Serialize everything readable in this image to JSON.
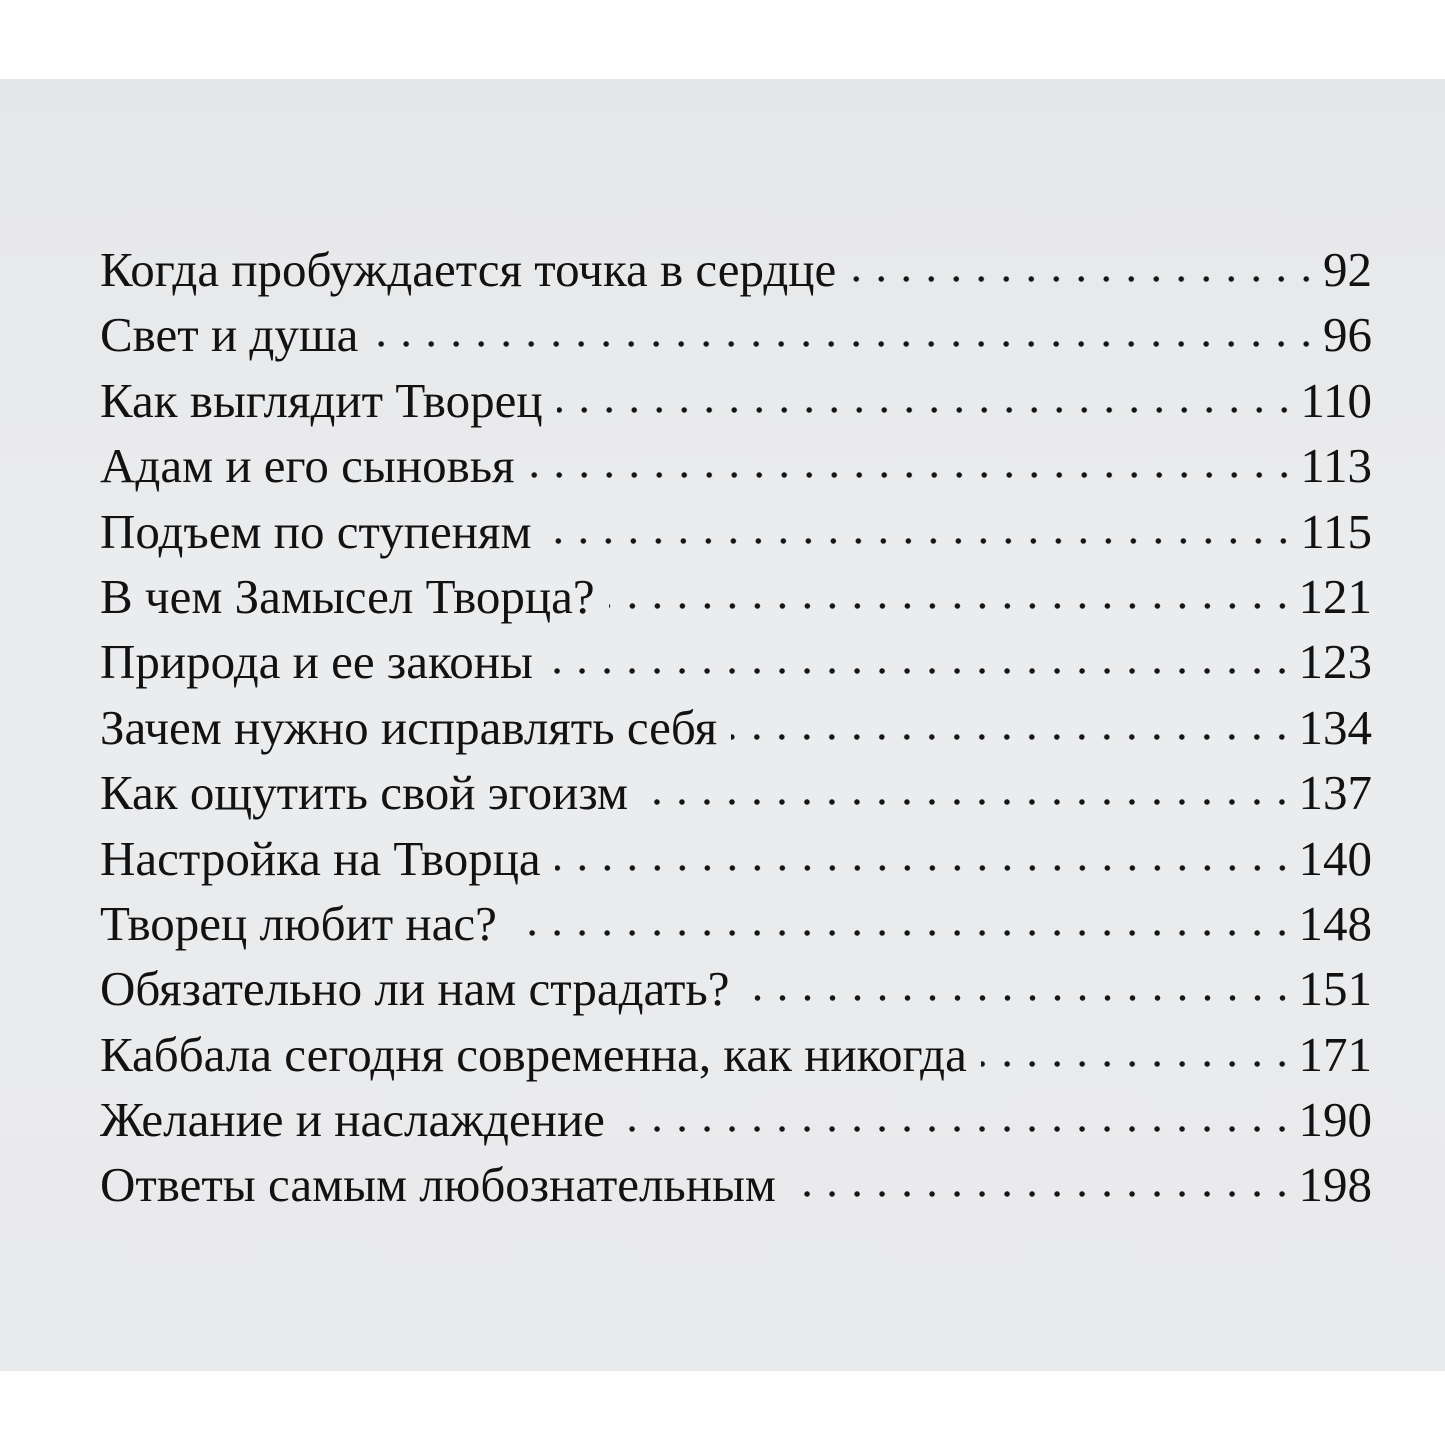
{
  "toc": [
    {
      "title": "Когда пробуждается точка в сердце",
      "page": "92"
    },
    {
      "title": "Свет и душа",
      "page": "96"
    },
    {
      "title": "Как выглядит Творец",
      "page": "110"
    },
    {
      "title": "Адам и его сыновья",
      "page": "113"
    },
    {
      "title": "Подъем по ступеням",
      "page": "115"
    },
    {
      "title": "В чем Замысел Творца?",
      "page": "121"
    },
    {
      "title": "Природа и ее законы",
      "page": "123"
    },
    {
      "title": "Зачем нужно исправлять себя",
      "page": "134"
    },
    {
      "title": "Как ощутить свой эгоизм",
      "page": "137"
    },
    {
      "title": "Настройка на Творца",
      "page": "140"
    },
    {
      "title": "Творец любит нас?",
      "page": "148"
    },
    {
      "title": "Обязательно ли нам страдать?",
      "page": "151"
    },
    {
      "title": "Каббала сегодня современна, как никогда",
      "page": "171"
    },
    {
      "title": "Желание и наслаждение",
      "page": "190"
    },
    {
      "title": "Ответы самым любознательным",
      "page": "198"
    }
  ]
}
